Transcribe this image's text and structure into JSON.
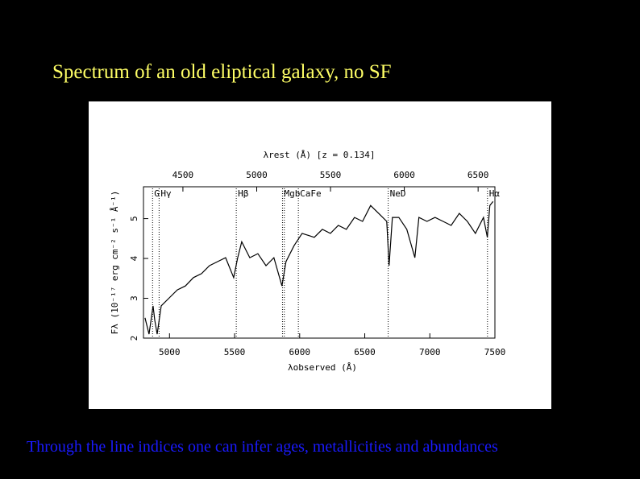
{
  "title": "Spectrum of  an old eliptical galaxy, no SF",
  "caption": "Through the line indices one can infer ages, metallicities and abundances",
  "chart_data": {
    "type": "line",
    "title": "λrest (Å) [z = 0.134]",
    "x_label": "λobserved (Å)",
    "y_label": "Fλ (10⁻¹⁷ erg cm⁻² s⁻¹ Å⁻¹)",
    "xlim": [
      4800,
      7500
    ],
    "xticks": [
      5000,
      5500,
      6000,
      6500,
      7000,
      7500
    ],
    "x2lim": [
      4232.8,
      6613.8
    ],
    "x2ticks": [
      4500,
      5000,
      5500,
      6000,
      6500
    ],
    "ylim": [
      2,
      5.8
    ],
    "yticks": [
      2,
      3,
      4,
      5
    ],
    "color": "#000000",
    "x": [
      4812,
      4843,
      4874,
      4887,
      4905,
      4936,
      4998,
      5060,
      5122,
      5184,
      5246,
      5307,
      5369,
      5431,
      5493,
      5524,
      5555,
      5617,
      5679,
      5741,
      5802,
      5864,
      5895,
      5957,
      6019,
      6112,
      6174,
      6236,
      6297,
      6359,
      6421,
      6483,
      6545,
      6607,
      6669,
      6687,
      6712,
      6762,
      6823,
      6885,
      6916,
      6978,
      7040,
      7102,
      7164,
      7226,
      7288,
      7350,
      7412,
      7442,
      7461,
      7486
    ],
    "values": [
      2.51,
      2.1,
      2.81,
      2.45,
      2.1,
      2.81,
      3.01,
      3.21,
      3.31,
      3.52,
      3.62,
      3.82,
      3.92,
      4.02,
      3.52,
      4.02,
      4.42,
      4.02,
      4.12,
      3.82,
      4.02,
      3.31,
      3.92,
      4.32,
      4.63,
      4.53,
      4.73,
      4.63,
      4.83,
      4.73,
      5.03,
      4.93,
      5.33,
      5.13,
      4.93,
      3.82,
      5.03,
      5.03,
      4.73,
      4.02,
      5.03,
      4.93,
      5.03,
      4.93,
      4.83,
      5.13,
      4.93,
      4.63,
      5.03,
      4.53,
      5.33,
      5.43
    ],
    "lines": [
      {
        "label": "G",
        "x": 4870
      },
      {
        "label": "Hγ",
        "x": 4920
      },
      {
        "label": "Hβ",
        "x": 5513
      },
      {
        "label": "Mgb",
        "x": 5868
      },
      {
        "label": "",
        "x": 5882
      },
      {
        "label": "CaFe",
        "x": 5990
      },
      {
        "label": "NeD",
        "x": 6680
      },
      {
        "label": "Hα",
        "x": 7443
      }
    ]
  }
}
